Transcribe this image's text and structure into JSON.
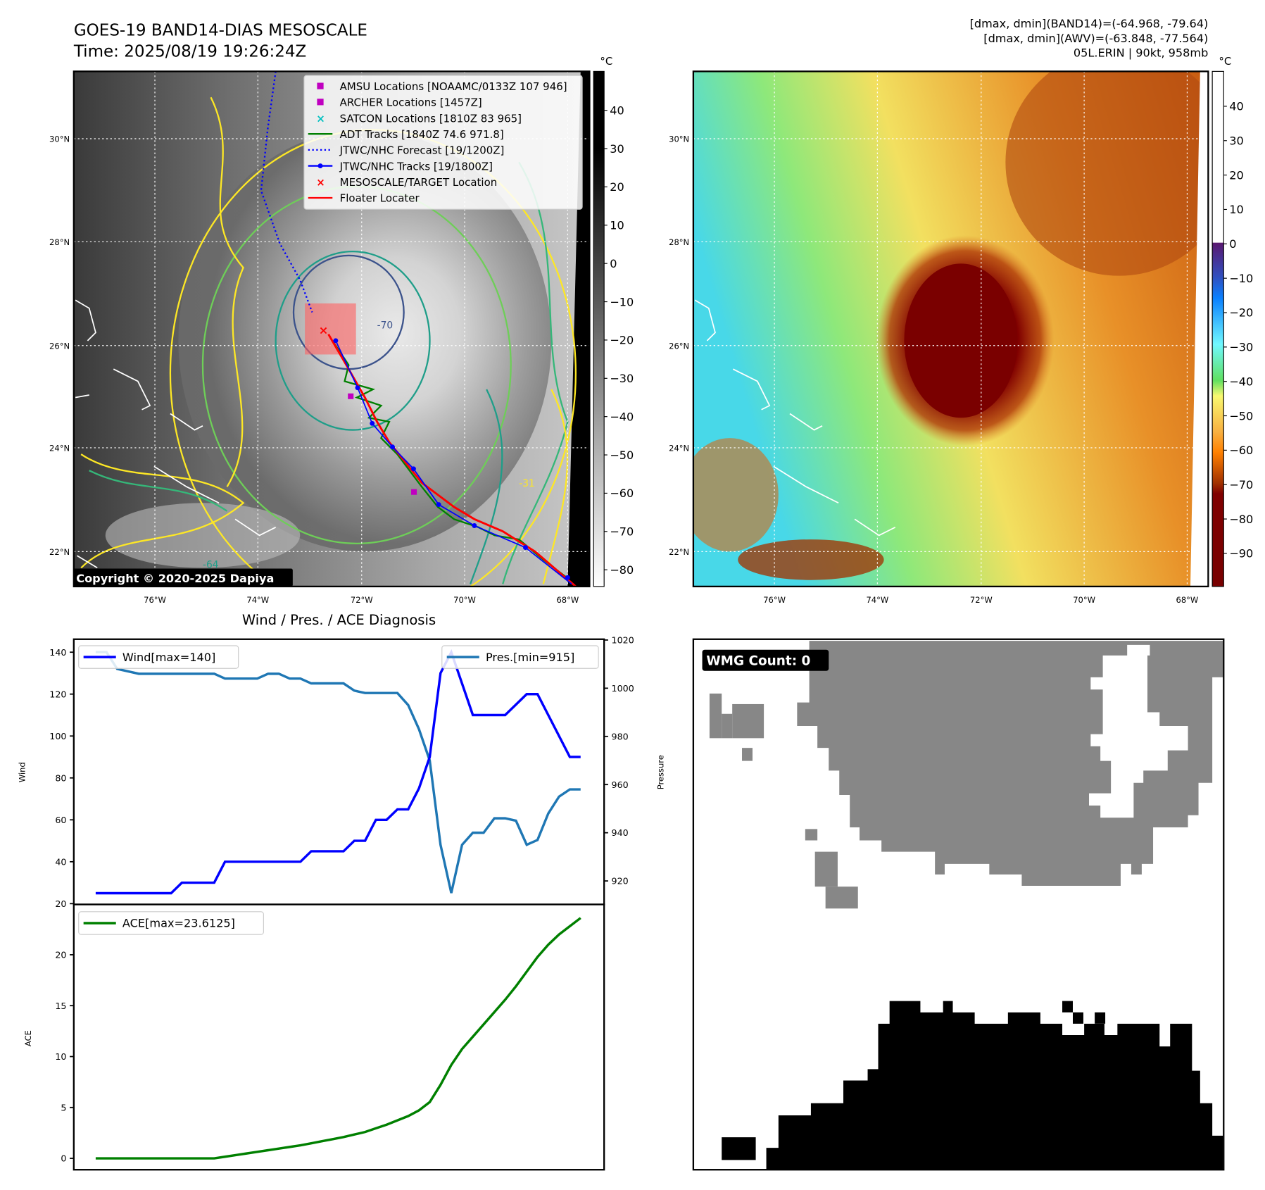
{
  "header": {
    "title": "GOES-19 BAND14-DIAS MESOSCALE",
    "time": "Time: 2025/08/19 19:26:24Z",
    "stats_band14": "[dmax, dmin](BAND14)=(-64.968, -79.64)",
    "stats_awv": "[dmax, dmin](AWV)=(-63.848, -77.564)",
    "storm": "05L.ERIN | 90kt, 958mb"
  },
  "map": {
    "lat_labels": [
      "30°N",
      "28°N",
      "26°N",
      "24°N",
      "22°N"
    ],
    "lon_labels": [
      "76°W",
      "74°W",
      "72°W",
      "70°W",
      "68°W"
    ],
    "copyright": "Copyright © 2020-2025 Dapiya",
    "legend": [
      {
        "label": "AMSU Locations [NOAAMC/0133Z 107 946]",
        "marker": "square",
        "color": "#c000c0"
      },
      {
        "label": "ARCHER Locations [1457Z]",
        "marker": "square",
        "color": "#c000c0"
      },
      {
        "label": "SATCON Locations [1810Z 83 965]",
        "marker": "x",
        "color": "#00c0c0"
      },
      {
        "label": "ADT Tracks [1840Z 74.6 971.8]",
        "marker": "line",
        "color": "#008000"
      },
      {
        "label": "JTWC/NHC Forecast [19/1200Z]",
        "marker": "dotted",
        "color": "#0000ff"
      },
      {
        "label": "JTWC/NHC Tracks [19/1800Z]",
        "marker": "line-dot",
        "color": "#0000ff"
      },
      {
        "label": "MESOSCALE/TARGET Location",
        "marker": "x",
        "color": "#ff0000"
      },
      {
        "label": "Floater Locater",
        "marker": "line",
        "color": "#ff0000"
      }
    ],
    "contour_labels": [
      "-31",
      "-64",
      "-70"
    ]
  },
  "colorbar_left": {
    "unit": "°C",
    "ticks": [
      "40",
      "30",
      "20",
      "10",
      "0",
      "−10",
      "−20",
      "−30",
      "−40",
      "−50",
      "−60",
      "−70",
      "−80"
    ]
  },
  "colorbar_right": {
    "unit": "°C",
    "ticks": [
      "40",
      "30",
      "20",
      "10",
      "0",
      "−10",
      "−20",
      "−30",
      "−40",
      "−50",
      "−60",
      "−70",
      "−80",
      "−90"
    ]
  },
  "wmg": {
    "label": "WMG Count: 0"
  },
  "chart_data": [
    {
      "type": "line",
      "title": "Wind / Pres. / ACE Diagnosis",
      "ylabel": "Wind",
      "y2label": "Pressure",
      "ylim": [
        20,
        146
      ],
      "y2lim": [
        910,
        1020
      ],
      "yticks": [
        20,
        40,
        60,
        80,
        100,
        120,
        140
      ],
      "y2ticks": [
        920,
        940,
        960,
        980,
        1000,
        1020
      ],
      "series": [
        {
          "name": "Wind[max=140]",
          "color": "#0000ff",
          "axis": "left",
          "values": [
            25,
            25,
            25,
            25,
            25,
            25,
            25,
            25,
            30,
            30,
            30,
            30,
            40,
            40,
            40,
            40,
            40,
            40,
            40,
            40,
            45,
            45,
            45,
            45,
            50,
            50,
            60,
            60,
            65,
            65,
            75,
            90,
            130,
            140,
            125,
            110,
            110,
            110,
            110,
            115,
            120,
            120,
            110,
            100,
            90,
            90
          ]
        },
        {
          "name": "Pres.[min=915]",
          "color": "#1f77b4",
          "axis": "right",
          "values": [
            1015,
            1015,
            1008,
            1007,
            1006,
            1006,
            1006,
            1006,
            1006,
            1006,
            1006,
            1006,
            1004,
            1004,
            1004,
            1004,
            1006,
            1006,
            1004,
            1004,
            1002,
            1002,
            1002,
            1002,
            999,
            998,
            998,
            998,
            998,
            993,
            983,
            970,
            935,
            915,
            935,
            940,
            940,
            946,
            946,
            945,
            935,
            937,
            948,
            955,
            958,
            958
          ]
        }
      ]
    },
    {
      "type": "line",
      "ylabel": "ACE",
      "ylim": [
        -1,
        24.5
      ],
      "yticks": [
        0,
        5,
        10,
        15,
        20
      ],
      "series": [
        {
          "name": "ACE[max=23.6125]",
          "color": "#008000",
          "values": [
            0,
            0,
            0,
            0,
            0,
            0,
            0,
            0,
            0,
            0,
            0,
            0,
            0.16,
            0.32,
            0.48,
            0.64,
            0.8,
            0.96,
            1.12,
            1.28,
            1.4825,
            1.685,
            1.8875,
            2.09,
            2.34,
            2.59,
            2.95,
            3.31,
            3.7325,
            4.155,
            4.7175,
            5.5275,
            7.2175,
            9.1775,
            10.74,
            11.95,
            13.16,
            14.37,
            15.58,
            16.9025,
            18.3425,
            19.7825,
            20.9925,
            21.9925,
            22.8025,
            23.6125
          ]
        }
      ]
    }
  ]
}
